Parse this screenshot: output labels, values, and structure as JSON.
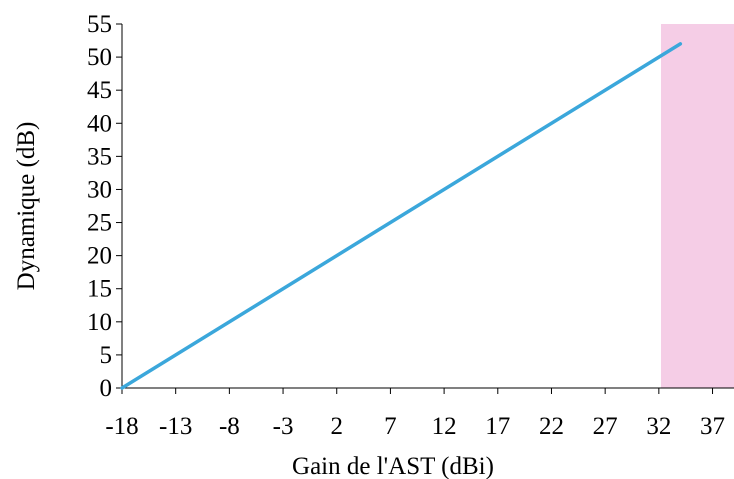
{
  "chart_data": {
    "type": "line",
    "title": "",
    "xlabel": "Gain de l'AST (dBi)",
    "ylabel": "Dynamique (dB)",
    "xlim": [
      -18,
      39
    ],
    "ylim": [
      0,
      55
    ],
    "x_ticks": [
      -18,
      -13,
      -8,
      -3,
      2,
      7,
      12,
      17,
      22,
      27,
      32,
      37
    ],
    "y_ticks": [
      0,
      5,
      10,
      15,
      20,
      25,
      30,
      35,
      40,
      45,
      50,
      55
    ],
    "grid": false,
    "legend": "none",
    "series": [
      {
        "x": [
          -18,
          34
        ],
        "y": [
          0,
          52
        ],
        "color": "#3ba7db"
      }
    ],
    "shaded_region": {
      "x_start": 32.2,
      "x_end": 39,
      "color": "#f5cde6"
    },
    "colors": {
      "axis": "#000000",
      "line": "#3ba7db",
      "shade": "#f5cde6"
    }
  }
}
